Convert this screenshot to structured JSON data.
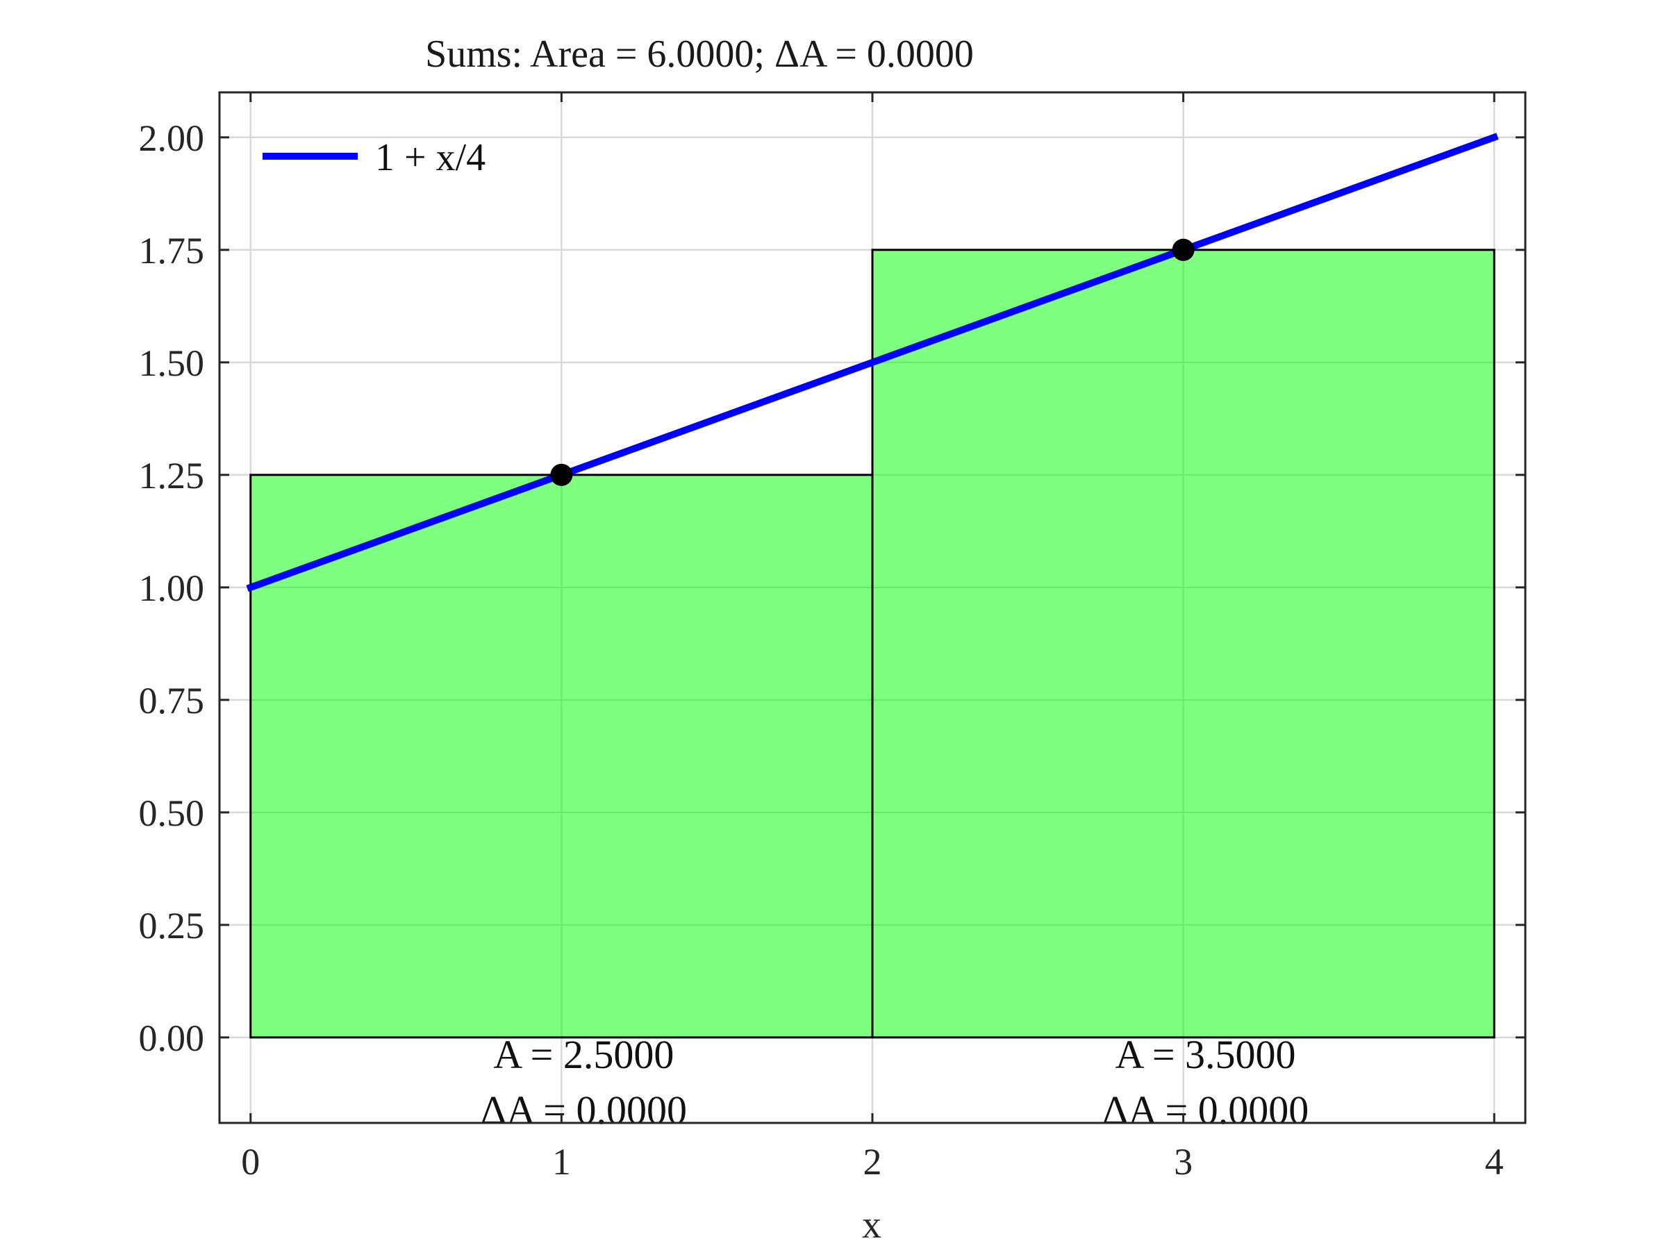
{
  "chart_data": {
    "type": "bar",
    "title": "Sums: Area = 6.0000; ΔA = 0.0000",
    "xlabel": "x",
    "ylabel": "",
    "xlim": [
      -0.1,
      4.1
    ],
    "ylim": [
      -0.19,
      2.1
    ],
    "grid": true,
    "legend_position": "top-left",
    "x_ticks": [
      0,
      1,
      2,
      3,
      4
    ],
    "x_tick_labels": [
      "0",
      "1",
      "2",
      "3",
      "4"
    ],
    "y_ticks": [
      0,
      0.25,
      0.5,
      0.75,
      1.0,
      1.25,
      1.5,
      1.75,
      2.0
    ],
    "y_tick_labels": [
      "0.00",
      "0.25",
      "0.50",
      "0.75",
      "1.00",
      "1.25",
      "1.50",
      "1.75",
      "2.00"
    ],
    "rectangles": [
      {
        "x0": 0,
        "x1": 2,
        "height": 1.25,
        "midpoint_x": 1,
        "area_label": "A = 2.5000",
        "delta_label": "ΔA = 0.0000"
      },
      {
        "x0": 2,
        "x1": 4,
        "height": 1.75,
        "midpoint_x": 3,
        "area_label": "A = 3.5000",
        "delta_label": "ΔA = 0.0000"
      }
    ],
    "series": [
      {
        "name": "1 + x/4",
        "type": "line",
        "x": [
          0,
          4
        ],
        "y": [
          1.0,
          2.0
        ],
        "color": "#0000ff"
      }
    ],
    "midpoints": [
      {
        "x": 1,
        "y": 1.25
      },
      {
        "x": 3,
        "y": 1.75
      }
    ],
    "colors": {
      "rectangle_fill": "#00ff00",
      "rectangle_edge": "#000000",
      "line": "#0000ff",
      "marker": "#000000",
      "grid": "#d9d9d9"
    }
  }
}
